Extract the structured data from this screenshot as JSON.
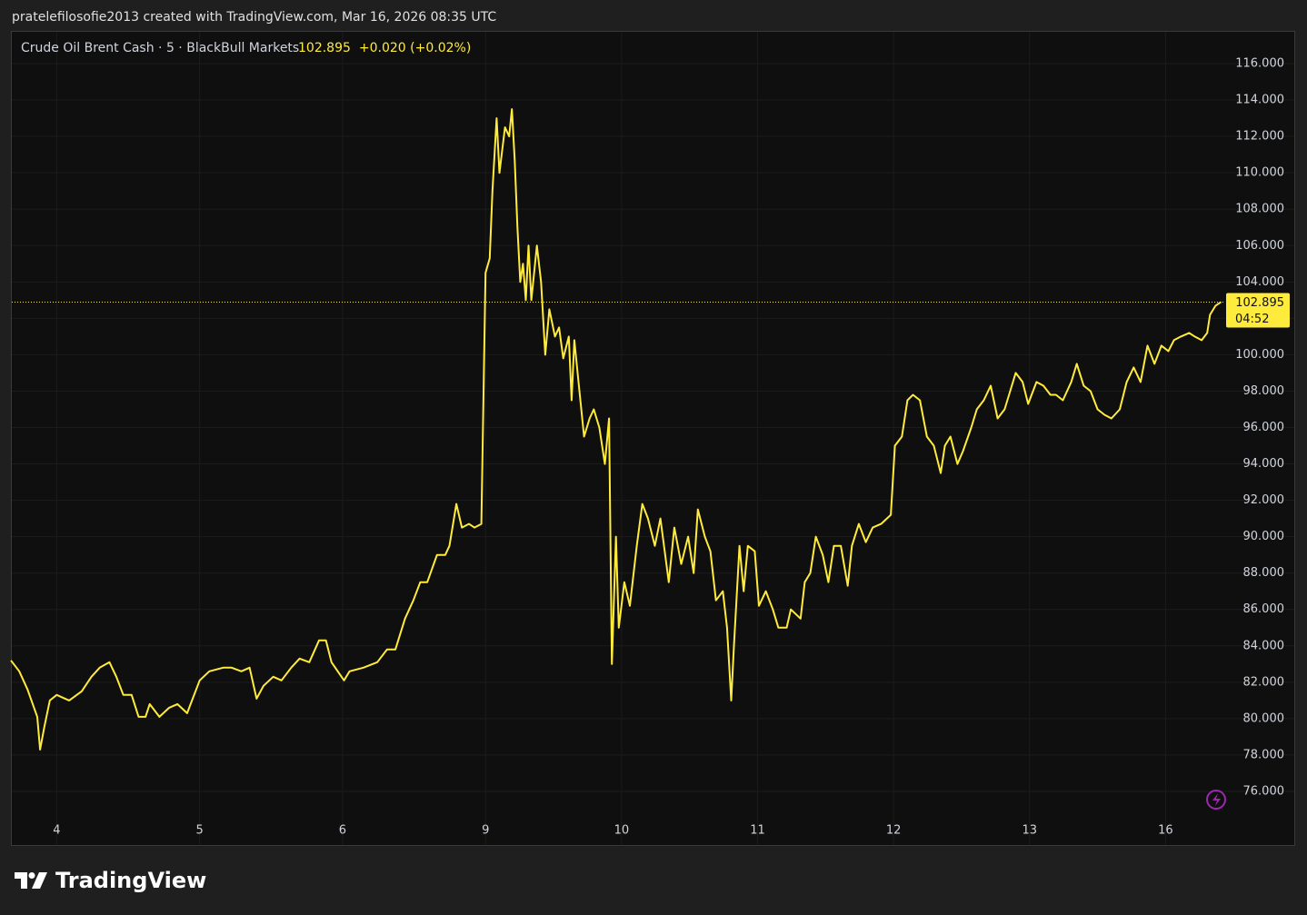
{
  "header": "pratelefilosofie2013 created with TradingView.com, Mar 16, 2026 08:35 UTC",
  "footer": "TradingView",
  "chart_data": {
    "type": "line",
    "title": "Crude Oil Brent Cash · 5 · BlackBull Markets",
    "last_price": 102.895,
    "change_label": "+0.020 (+0.02%)",
    "countdown": "04:52",
    "color": "#ffeb3b",
    "grid": true,
    "x": [
      -0.33,
      -0.27,
      -0.21,
      -0.14,
      -0.12,
      -0.09,
      -0.05,
      0,
      0.09,
      0.18,
      0.25,
      0.31,
      0.38,
      0.43,
      0.48,
      0.54,
      0.59,
      0.64,
      0.67,
      0.74,
      0.81,
      0.87,
      0.94,
      0.98,
      1.03,
      1.1,
      1.2,
      1.26,
      1.33,
      1.39,
      1.44,
      1.49,
      1.56,
      1.62,
      1.69,
      1.75,
      1.82,
      1.89,
      1.94,
      1.98,
      2.07,
      2.11,
      2.21,
      2.31,
      2.38,
      2.44,
      2.51,
      2.57,
      2.62,
      2.67,
      2.74,
      2.8,
      2.83,
      2.88,
      2.92,
      2.97,
      3.01,
      3.06,
      3.09,
      3.12,
      3.14,
      3.17,
      3.19,
      3.23,
      3.26,
      3.28,
      3.3,
      3.32,
      3.34,
      3.36,
      3.38,
      3.4,
      3.42,
      3.46,
      3.49,
      3.52,
      3.55,
      3.59,
      3.62,
      3.65,
      3.69,
      3.71,
      3.73,
      3.76,
      3.8,
      3.84,
      3.87,
      3.91,
      3.95,
      3.98,
      4.0,
      4.03,
      4.05,
      4.09,
      4.13,
      4.18,
      4.22,
      4.26,
      4.31,
      4.35,
      4.41,
      4.45,
      4.5,
      4.55,
      4.59,
      4.62,
      4.67,
      4.71,
      4.75,
      4.8,
      4.83,
      4.86,
      4.88,
      4.92,
      4.95,
      4.98,
      5.03,
      5.06,
      5.11,
      5.16,
      5.2,
      5.26,
      5.29,
      5.36,
      5.39,
      5.43,
      5.47,
      5.52,
      5.56,
      5.6,
      5.65,
      5.7,
      5.73,
      5.78,
      5.83,
      5.88,
      5.94,
      6.01,
      6.04,
      6.09,
      6.13,
      6.17,
      6.22,
      6.27,
      6.32,
      6.37,
      6.4,
      6.44,
      6.49,
      6.53,
      6.59,
      6.63,
      6.68,
      6.73,
      6.78,
      6.83,
      6.87,
      6.91,
      6.96,
      7.0,
      7.06,
      7.11,
      7.16,
      7.2,
      7.25,
      7.31,
      7.35,
      7.4,
      7.45,
      7.5,
      7.55,
      7.6,
      7.66,
      7.71,
      7.76,
      7.81,
      7.86,
      7.91,
      7.96,
      8.01,
      8.05,
      8.1,
      8.16,
      8.2,
      8.25,
      8.29,
      8.31,
      8.35,
      8.39
    ],
    "values": [
      83.2,
      82.6,
      81.6,
      80.1,
      78.3,
      79.5,
      81.0,
      81.3,
      81.0,
      81.5,
      82.3,
      82.8,
      83.1,
      82.3,
      81.3,
      81.3,
      80.1,
      80.1,
      80.8,
      80.1,
      80.6,
      80.8,
      80.3,
      81.1,
      82.1,
      82.6,
      82.8,
      82.8,
      82.6,
      82.8,
      81.1,
      81.8,
      82.3,
      82.1,
      82.8,
      83.3,
      83.1,
      84.3,
      84.3,
      83.1,
      82.1,
      82.6,
      82.8,
      83.1,
      83.8,
      83.8,
      85.5,
      86.5,
      87.5,
      87.5,
      89.0,
      89.0,
      89.5,
      91.8,
      90.5,
      90.7,
      90.5,
      90.7,
      104.5,
      105.3,
      109.0,
      113.0,
      110.0,
      112.5,
      112.0,
      113.5,
      110.7,
      107.0,
      104.0,
      105.0,
      103.0,
      106.0,
      103.0,
      106.0,
      104.0,
      100.0,
      102.5,
      101.0,
      101.5,
      99.8,
      101.0,
      97.5,
      100.8,
      98.5,
      95.5,
      96.5,
      97.0,
      96.0,
      94.0,
      96.5,
      83.0,
      90.0,
      85.0,
      87.5,
      86.2,
      89.5,
      91.8,
      91.0,
      89.5,
      91.0,
      87.5,
      90.5,
      88.5,
      90.0,
      88.0,
      91.5,
      90.0,
      89.2,
      86.5,
      87.0,
      85.0,
      81.0,
      84.0,
      89.5,
      87.0,
      89.5,
      89.2,
      86.2,
      87.0,
      86.0,
      85.0,
      85.0,
      86.0,
      85.5,
      87.5,
      88.0,
      90.0,
      89.0,
      87.5,
      89.5,
      89.5,
      87.3,
      89.5,
      90.7,
      89.7,
      90.5,
      90.7,
      91.2,
      95.0,
      95.5,
      97.5,
      97.8,
      97.5,
      95.5,
      95.0,
      93.5,
      95.0,
      95.5,
      94.0,
      94.7,
      96.0,
      97.0,
      97.5,
      98.3,
      96.5,
      97.0,
      98.0,
      99.0,
      98.5,
      97.3,
      98.5,
      98.3,
      97.8,
      97.8,
      97.5,
      98.5,
      99.5,
      98.3,
      98.0,
      97.0,
      96.7,
      96.5,
      97.0,
      98.5,
      99.3,
      98.5,
      100.5,
      99.5,
      100.5,
      100.2,
      100.8,
      101.0,
      101.2,
      101.0,
      100.8,
      101.2,
      102.2,
      102.7,
      102.9
    ],
    "xlim": [
      -0.33,
      8.4
    ],
    "xticks": [
      {
        "value": 0,
        "label": "4"
      },
      {
        "value": 1.03,
        "label": "5"
      },
      {
        "value": 2.06,
        "label": "6"
      },
      {
        "value": 3.09,
        "label": "9"
      },
      {
        "value": 4.07,
        "label": "10"
      },
      {
        "value": 5.05,
        "label": "11"
      },
      {
        "value": 6.03,
        "label": "12"
      },
      {
        "value": 7.01,
        "label": "13"
      },
      {
        "value": 7.99,
        "label": "16"
      }
    ],
    "ylim": [
      74.75,
      117.8
    ],
    "yticks": [
      {
        "value": 76,
        "label": "76.000"
      },
      {
        "value": 78,
        "label": "78.000"
      },
      {
        "value": 80,
        "label": "80.000"
      },
      {
        "value": 82,
        "label": "82.000"
      },
      {
        "value": 84,
        "label": "84.000"
      },
      {
        "value": 86,
        "label": "86.000"
      },
      {
        "value": 88,
        "label": "88.000"
      },
      {
        "value": 90,
        "label": "90.000"
      },
      {
        "value": 92,
        "label": "92.000"
      },
      {
        "value": 94,
        "label": "94.000"
      },
      {
        "value": 96,
        "label": "96.000"
      },
      {
        "value": 98,
        "label": "98.000"
      },
      {
        "value": 100,
        "label": "100.000"
      },
      {
        "value": 102,
        "label": "102.000"
      },
      {
        "value": 104,
        "label": "104.000"
      },
      {
        "value": 106,
        "label": "106.000"
      },
      {
        "value": 108,
        "label": "108.000"
      },
      {
        "value": 110,
        "label": "110.000"
      },
      {
        "value": 112,
        "label": "112.000"
      },
      {
        "value": 114,
        "label": "114.000"
      },
      {
        "value": 116,
        "label": "116.000"
      }
    ]
  }
}
